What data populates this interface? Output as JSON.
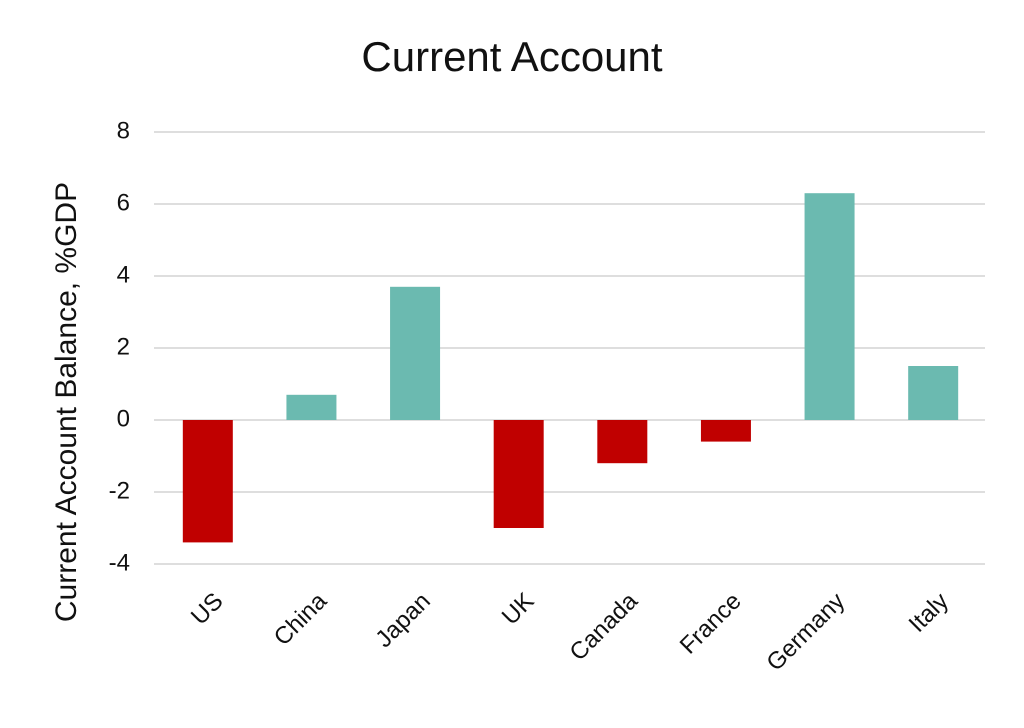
{
  "chart_data": {
    "type": "bar",
    "title": "Current Account",
    "y_label": "Current Account Balance, %GDP",
    "categories": [
      "US",
      "China",
      "Japan",
      "UK",
      "Canada",
      "France",
      "Germany",
      "Italy"
    ],
    "values": [
      -3.4,
      0.7,
      3.7,
      -3.0,
      -1.2,
      -0.6,
      6.3,
      1.5
    ],
    "colors": [
      "#c00000",
      "#6bbab0",
      "#6bbab0",
      "#c00000",
      "#c00000",
      "#c00000",
      "#6bbab0",
      "#6bbab0"
    ],
    "ylim": [
      -4,
      8
    ],
    "yticks": [
      -4,
      -2,
      0,
      2,
      4,
      6,
      8
    ],
    "grid": true
  }
}
